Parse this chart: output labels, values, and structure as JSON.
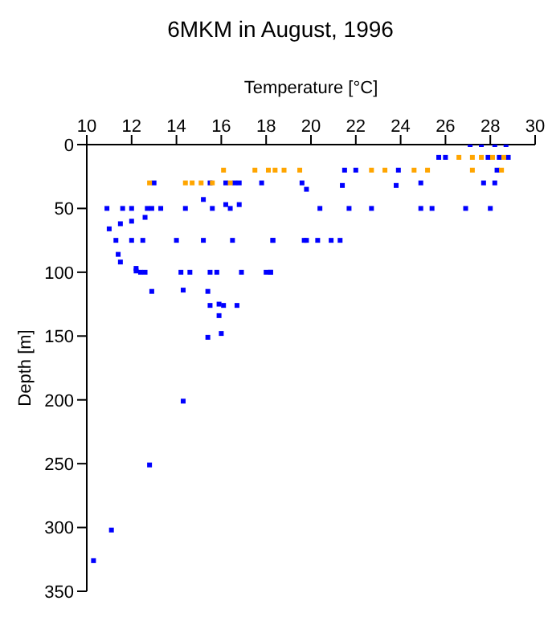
{
  "chart_data": {
    "type": "scatter",
    "title": "6MKM in August, 1996",
    "xlabel": "Temperature [°C]",
    "ylabel": "Depth [m]",
    "xlim": [
      10,
      30
    ],
    "xticks": [
      10,
      12,
      14,
      16,
      18,
      20,
      22,
      24,
      26,
      28,
      30
    ],
    "ylim": [
      350,
      0
    ],
    "yticks": [
      0,
      50,
      100,
      150,
      200,
      250,
      300,
      350
    ],
    "grid": false,
    "legend": false,
    "marker": "square",
    "series": [
      {
        "color": "#0000ff",
        "x": [
          10.9,
          11.0,
          11.3,
          11.4,
          11.5,
          11.6,
          11.5,
          12.0,
          12.0,
          12.0,
          12.2,
          12.4,
          12.5,
          12.6,
          12.7,
          12.9,
          13.0,
          13.3,
          14.0,
          14.2,
          14.4,
          14.6,
          15.2,
          15.2,
          15.5,
          15.5,
          15.6,
          15.8,
          16.2,
          16.2,
          16.4,
          16.5,
          16.6,
          16.8,
          16.8,
          16.9,
          17.8,
          18.0,
          18.3,
          18.2,
          21.5,
          22.0,
          23.9,
          28.3,
          19.6,
          19.8,
          21.4,
          23.8,
          24.9,
          27.7,
          28.2,
          20.4,
          21.7,
          22.7,
          24.9,
          25.4,
          26.9,
          28.0,
          18.3,
          19.7,
          19.8,
          20.3,
          20.9,
          21.3,
          18.2,
          25.7,
          26.0,
          27.9,
          28.4,
          28.8,
          27.1,
          27.6,
          28.2,
          28.7,
          12.9,
          14.3,
          15.4,
          15.5,
          15.9,
          16.1,
          16.7,
          15.9,
          15.4,
          16.0,
          14.3,
          12.8,
          11.1,
          10.3,
          12.2,
          12.6
        ],
        "values": [
          50,
          66,
          75,
          86,
          92,
          50,
          62,
          50,
          60,
          75,
          97,
          100,
          75,
          57,
          50,
          50,
          30,
          50,
          75,
          100,
          50,
          100,
          43,
          75,
          30,
          100,
          50,
          100,
          47,
          30,
          50,
          75,
          30,
          47,
          30,
          100,
          30,
          100,
          75,
          100,
          20,
          20,
          20,
          20,
          30,
          35,
          32,
          32,
          30,
          30,
          30,
          50,
          50,
          50,
          50,
          50,
          50,
          50,
          75,
          75,
          75,
          75,
          75,
          75,
          100,
          10,
          10,
          10,
          10,
          10,
          0,
          0,
          0,
          0,
          115,
          114,
          115,
          126,
          125,
          126,
          126,
          134,
          151,
          148,
          201,
          251,
          302,
          326,
          99,
          100
        ]
      },
      {
        "color": "#ffa500",
        "x": [
          17.5,
          18.1,
          18.4,
          18.8,
          19.5,
          22.7,
          23.3,
          24.6,
          25.2,
          27.2,
          28.5,
          16.1,
          12.8,
          14.4,
          14.7,
          15.1,
          15.6,
          16.4,
          26.6,
          27.2,
          27.6,
          28.1,
          28.6
        ],
        "values": [
          20,
          20,
          20,
          20,
          20,
          20,
          20,
          20,
          20,
          20,
          20,
          20,
          30,
          30,
          30,
          30,
          30,
          30,
          10,
          10,
          10,
          10,
          10
        ]
      }
    ]
  }
}
